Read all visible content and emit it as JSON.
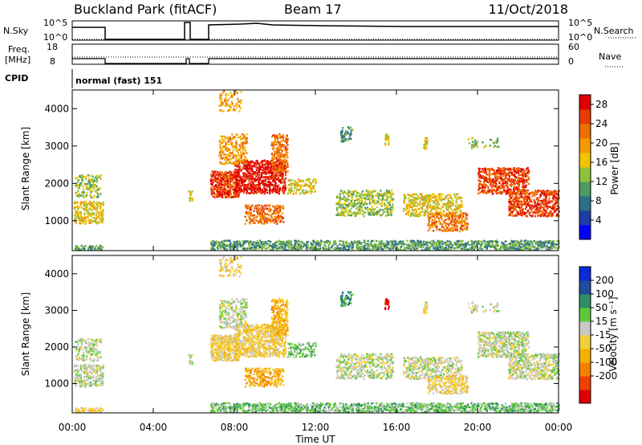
{
  "header": {
    "site_title": "Buckland Park (fitACF)",
    "beam_label": "Beam 17",
    "date": "11/Oct/2018",
    "cpid_label": "CPID",
    "cpid_value": "normal (fast) 151"
  },
  "colors": {
    "power_scale": [
      "#0000ff",
      "#1c3ea8",
      "#2e6f86",
      "#4d9a63",
      "#8fc13a",
      "#f2c400",
      "#f59a00",
      "#ef6e00",
      "#e83c00",
      "#e00000"
    ],
    "velocity_scale": [
      "#e00000",
      "#ef4000",
      "#f58000",
      "#f6b000",
      "#f3cf3a",
      "#c8c8c8",
      "#5fc83a",
      "#2e8f64",
      "#1e4e9a",
      "#0a2ad8"
    ]
  },
  "chart_data": [
    {
      "type": "line",
      "panel": "noise",
      "left_label": "N.Sky",
      "right_label": "N.Search",
      "left_ticks": [
        "10^5",
        "10^0"
      ],
      "right_ticks": [
        "10^5",
        "10^0"
      ]
    },
    {
      "type": "line",
      "panel": "frequency",
      "left_label_lines": [
        "Freq.",
        "[MHz]"
      ],
      "right_label": "Nave",
      "left_ticks": [
        18,
        8
      ],
      "right_ticks": [
        60,
        0
      ]
    },
    {
      "type": "heatmap",
      "panel": "power",
      "ylabel": "Slant Range [km]",
      "yticks": [
        1000,
        2000,
        3000,
        4000
      ],
      "ylim": [
        200,
        4500
      ],
      "colorbar_label": "Power [dB]",
      "colorbar_ticks": [
        4,
        8,
        12,
        16,
        20,
        24,
        28
      ],
      "colorbar_range": [
        0,
        30
      ]
    },
    {
      "type": "heatmap",
      "panel": "velocity",
      "ylabel": "Slant Range [km]",
      "yticks": [
        1000,
        2000,
        3000,
        4000
      ],
      "ylim": [
        200,
        4500
      ],
      "colorbar_label": "Velocity [m s⁻¹]",
      "colorbar_ticks": [
        200,
        100,
        50,
        15,
        -15,
        -50,
        -100,
        -200
      ],
      "xlabel": "Time UT",
      "xticks": [
        "00:00",
        "04:00",
        "08:00",
        "12:00",
        "16:00",
        "20:00",
        "00:00"
      ],
      "xlim_hours": [
        0,
        24
      ]
    }
  ]
}
